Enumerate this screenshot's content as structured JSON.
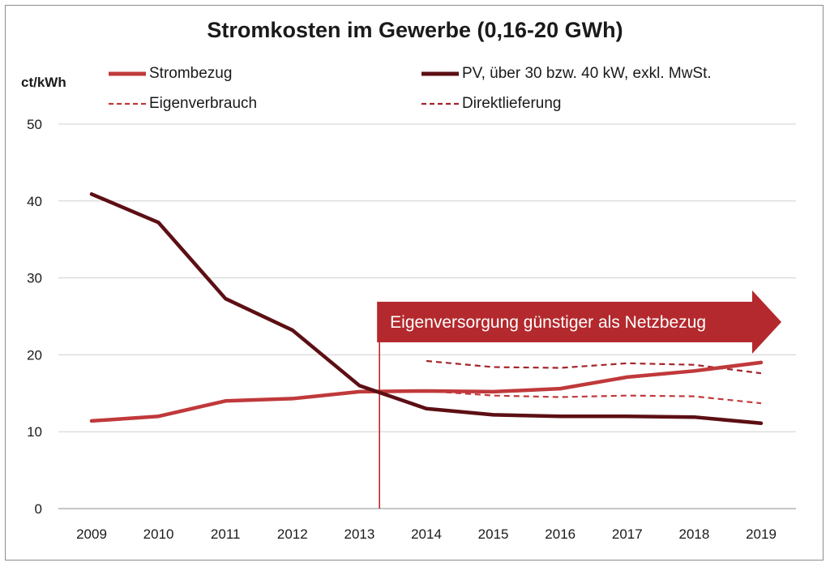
{
  "chart_data": {
    "type": "line",
    "title": "Stromkosten im Gewerbe (0,16-20 GWh)",
    "ylabel": "ct/kWh",
    "xlabel": "",
    "ylim": [
      0,
      50
    ],
    "yticks": [
      0,
      10,
      20,
      30,
      40,
      50
    ],
    "categories": [
      "2009",
      "2010",
      "2011",
      "2012",
      "2013",
      "2014",
      "2015",
      "2016",
      "2017",
      "2018",
      "2019"
    ],
    "grid": true,
    "legend_position": "top",
    "series": [
      {
        "name": "Strombezug",
        "style": "solid-thick",
        "color": "#c0393b",
        "x": [
          2009,
          2010,
          2011,
          2012,
          2013,
          2014,
          2015,
          2016,
          2017,
          2018,
          2019
        ],
        "values": [
          11.4,
          12.0,
          14.0,
          14.3,
          15.2,
          15.3,
          15.2,
          15.6,
          17.1,
          17.9,
          19.0
        ]
      },
      {
        "name": "PV, über 30 bzw. 40 kW, exkl. MwSt.",
        "style": "solid-thick",
        "color": "#5c0f14",
        "x": [
          2009,
          2010,
          2011,
          2012,
          2013,
          2014,
          2015,
          2016,
          2017,
          2018,
          2019
        ],
        "values": [
          40.9,
          37.2,
          27.3,
          23.2,
          16.0,
          13.0,
          12.2,
          12.0,
          12.0,
          11.9,
          11.1
        ]
      },
      {
        "name": "Eigenverbrauch",
        "style": "dashed",
        "color": "#c0393b",
        "x": [
          2014,
          2015,
          2016,
          2017,
          2018,
          2019
        ],
        "values": [
          15.3,
          14.7,
          14.5,
          14.7,
          14.6,
          13.7
        ]
      },
      {
        "name": "Direktlieferung",
        "style": "dashed",
        "color": "#a3262a",
        "x": [
          2014,
          2015,
          2016,
          2017,
          2018,
          2019
        ],
        "values": [
          19.2,
          18.4,
          18.3,
          18.9,
          18.7,
          17.6
        ]
      }
    ],
    "annotations": [
      {
        "text": "Eigenversorgung günstiger als Netzbezug",
        "type": "arrow-banner",
        "color": "#b3292d",
        "x": 2013.3
      }
    ],
    "vertical_line": {
      "x": 2013.3,
      "color": "#b3292d"
    }
  }
}
